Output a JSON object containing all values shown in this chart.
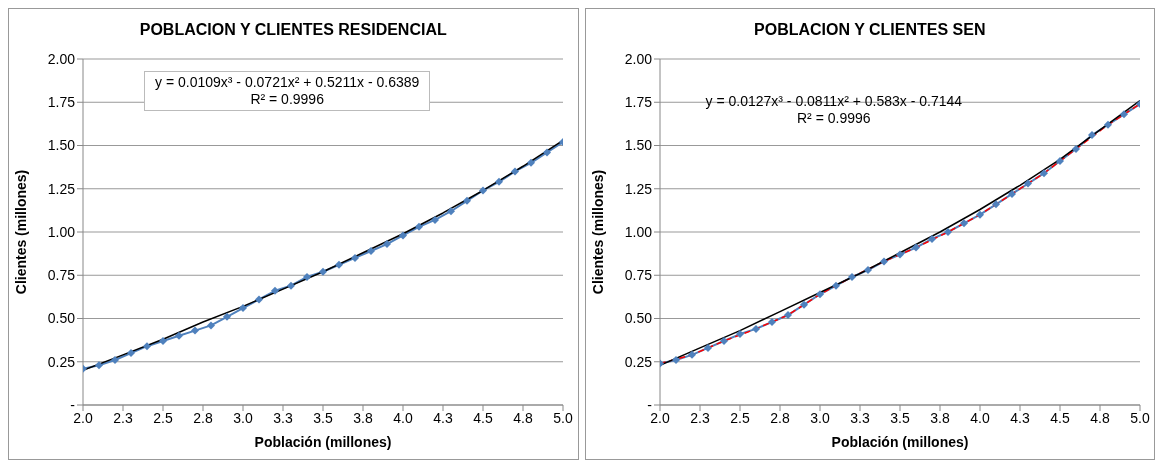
{
  "chart_data": [
    {
      "type": "line",
      "title": "POBLACION Y CLIENTES RESIDENCIAL",
      "xlabel": "Población (millones)",
      "ylabel": "Clientes (millones)",
      "annotations": [
        "y = 0.0109x³ - 0.0721x² + 0.5211x - 0.6389",
        "R² = 0.9996"
      ],
      "xlim": [
        2,
        5
      ],
      "xticks": [
        {
          "value": 2,
          "label": "2.0"
        },
        {
          "value": 2.25,
          "label": "2.3"
        },
        2.5,
        {
          "value": 2.75,
          "label": "2.8"
        },
        {
          "value": 3,
          "label": "3.0"
        },
        {
          "value": 3.25,
          "label": "3.3"
        },
        3.5,
        {
          "value": 3.75,
          "label": "3.8"
        },
        {
          "value": 4,
          "label": "4.0"
        },
        {
          "value": 4.25,
          "label": "4.3"
        },
        4.5,
        {
          "value": 4.75,
          "label": "4.8"
        },
        {
          "value": 5,
          "label": "5.0"
        }
      ],
      "ylim": [
        0,
        2
      ],
      "yticks": [
        {
          "value": 0,
          "label": "-"
        },
        0.25,
        {
          "value": 0.5,
          "label": "0.50"
        },
        0.75,
        {
          "value": 1,
          "label": "1.00"
        },
        1.25,
        {
          "value": 1.5,
          "label": "1.50"
        },
        1.75,
        {
          "value": 2,
          "label": "2.00"
        }
      ],
      "grid": "y",
      "series": [
        {
          "color": "#4f81bd",
          "marker": "diamond",
          "line_style": "solid",
          "x": [
            2.0,
            2.1,
            2.2,
            2.3,
            2.4,
            2.5,
            2.6,
            2.7,
            2.8,
            2.9,
            3.0,
            3.1,
            3.2,
            3.3,
            3.4,
            3.5,
            3.6,
            3.7,
            3.8,
            3.9,
            4.0,
            4.1,
            4.2,
            4.3,
            4.4,
            4.5,
            4.6,
            4.7,
            4.8,
            4.9,
            5.0
          ],
          "values": [
            0.21,
            0.23,
            0.26,
            0.3,
            0.34,
            0.37,
            0.4,
            0.43,
            0.46,
            0.51,
            0.56,
            0.61,
            0.66,
            0.69,
            0.74,
            0.77,
            0.81,
            0.85,
            0.89,
            0.93,
            0.98,
            1.03,
            1.07,
            1.12,
            1.18,
            1.24,
            1.29,
            1.35,
            1.4,
            1.46,
            1.52
          ]
        },
        {
          "color": "#000000",
          "marker": "none",
          "line_style": "solid",
          "x": [
            2,
            2.25,
            2.5,
            2.75,
            3,
            3.25,
            3.5,
            3.75,
            4,
            4.25,
            4.5,
            4.75,
            5
          ],
          "values": [
            0.2,
            0.29,
            0.38,
            0.48,
            0.57,
            0.67,
            0.77,
            0.88,
            0.99,
            1.11,
            1.24,
            1.38,
            1.53
          ]
        }
      ]
    },
    {
      "type": "line",
      "title": "POBLACION Y CLIENTES SEN",
      "xlabel": "Población (millones)",
      "ylabel": "Clientes (millones)",
      "annotations": [
        "y = 0.0127x³ - 0.0811x² + 0.583x - 0.7144",
        "R² = 0.9996"
      ],
      "xlim": [
        2,
        5
      ],
      "xticks": [
        {
          "value": 2,
          "label": "2.0"
        },
        {
          "value": 2.25,
          "label": "2.3"
        },
        2.5,
        {
          "value": 2.75,
          "label": "2.8"
        },
        {
          "value": 3,
          "label": "3.0"
        },
        {
          "value": 3.25,
          "label": "3.3"
        },
        3.5,
        {
          "value": 3.75,
          "label": "3.8"
        },
        {
          "value": 4,
          "label": "4.0"
        },
        {
          "value": 4.25,
          "label": "4.3"
        },
        4.5,
        {
          "value": 4.75,
          "label": "4.8"
        },
        {
          "value": 5,
          "label": "5.0"
        }
      ],
      "ylim": [
        0,
        2
      ],
      "yticks": [
        {
          "value": 0,
          "label": "-"
        },
        0.25,
        {
          "value": 0.5,
          "label": "0.50"
        },
        0.75,
        {
          "value": 1,
          "label": "1.00"
        },
        1.25,
        {
          "value": 1.5,
          "label": "1.50"
        },
        1.75,
        {
          "value": 2,
          "label": "2.00"
        }
      ],
      "grid": "y",
      "series": [
        {
          "color": "#4f81bd",
          "marker": "diamond",
          "line_style": "solid",
          "x": [
            2.0,
            2.1,
            2.2,
            2.3,
            2.4,
            2.5,
            2.6,
            2.7,
            2.8,
            2.9,
            3.0,
            3.1,
            3.2,
            3.3,
            3.4,
            3.5,
            3.6,
            3.7,
            3.8,
            3.9,
            4.0,
            4.1,
            4.2,
            4.3,
            4.4,
            4.5,
            4.6,
            4.7,
            4.8,
            4.9,
            5.0
          ],
          "values": [
            0.24,
            0.26,
            0.29,
            0.33,
            0.37,
            0.41,
            0.44,
            0.48,
            0.52,
            0.58,
            0.64,
            0.69,
            0.74,
            0.78,
            0.83,
            0.87,
            0.91,
            0.96,
            1.0,
            1.05,
            1.1,
            1.16,
            1.22,
            1.28,
            1.34,
            1.41,
            1.48,
            1.56,
            1.62,
            1.68,
            1.74
          ]
        },
        {
          "color": "#ff0000",
          "marker": "none",
          "line_style": "dashed",
          "x": [
            2.0,
            2.2,
            2.4,
            2.6,
            2.8,
            3.0,
            3.2,
            3.4,
            3.6,
            3.8,
            4.0,
            4.2,
            4.4,
            4.6,
            4.8,
            5.0
          ],
          "values": [
            0.24,
            0.29,
            0.37,
            0.44,
            0.52,
            0.64,
            0.74,
            0.83,
            0.91,
            1.0,
            1.1,
            1.22,
            1.34,
            1.48,
            1.62,
            1.74
          ]
        },
        {
          "color": "#000000",
          "marker": "none",
          "line_style": "solid",
          "x": [
            2,
            2.25,
            2.5,
            2.75,
            3,
            3.25,
            3.5,
            3.75,
            4,
            4.25,
            4.5,
            4.75,
            5
          ],
          "values": [
            0.23,
            0.33,
            0.43,
            0.54,
            0.65,
            0.76,
            0.88,
            1.0,
            1.13,
            1.27,
            1.42,
            1.59,
            1.76
          ]
        }
      ]
    }
  ]
}
